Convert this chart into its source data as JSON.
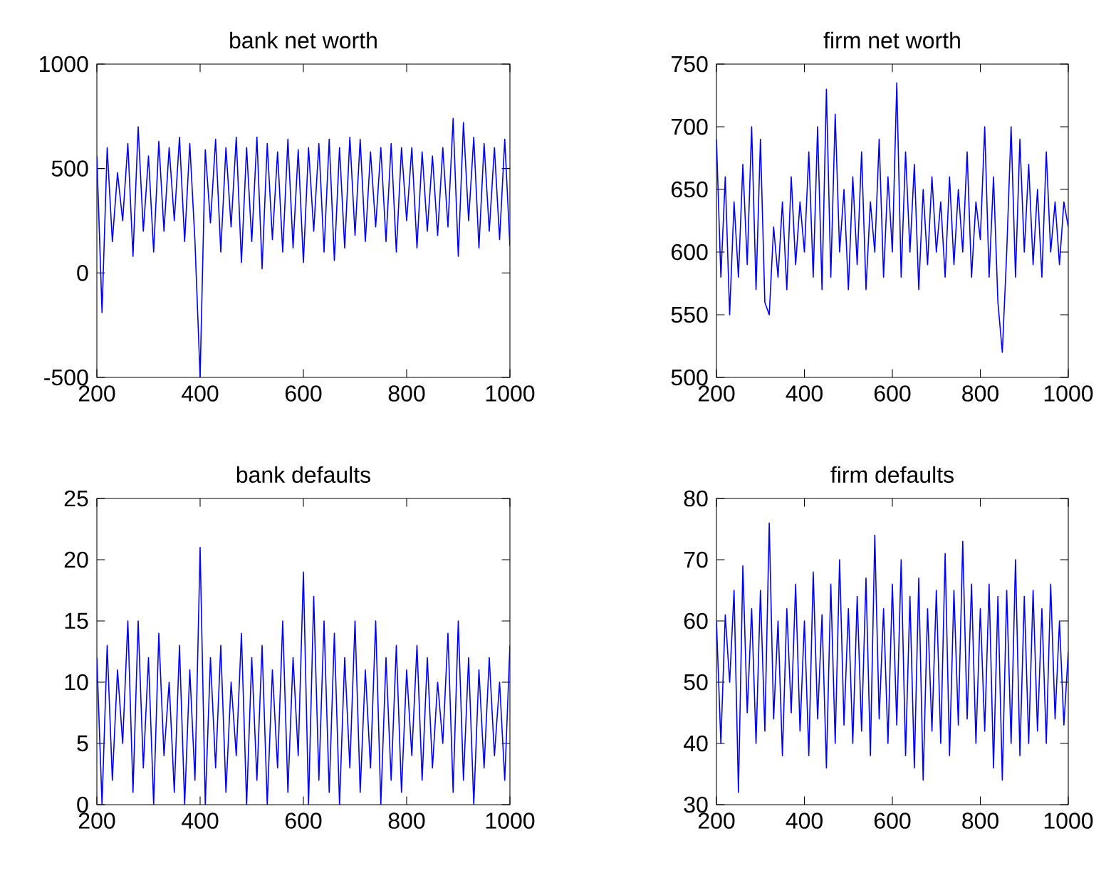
{
  "chart_data": [
    {
      "type": "line",
      "title": "bank net worth",
      "color": "#0000ff",
      "xlim": [
        200,
        1000
      ],
      "ylim": [
        -500,
        1000
      ],
      "xticks": [
        200,
        400,
        600,
        800,
        1000
      ],
      "yticks": [
        -500,
        0,
        500,
        1000
      ],
      "x": [
        200,
        210,
        220,
        230,
        240,
        250,
        260,
        270,
        280,
        290,
        300,
        310,
        320,
        330,
        340,
        350,
        360,
        370,
        380,
        390,
        400,
        410,
        420,
        430,
        440,
        450,
        460,
        470,
        480,
        490,
        500,
        510,
        520,
        530,
        540,
        550,
        560,
        570,
        580,
        590,
        600,
        610,
        620,
        630,
        640,
        650,
        660,
        670,
        680,
        690,
        700,
        710,
        720,
        730,
        740,
        750,
        760,
        770,
        780,
        790,
        800,
        810,
        820,
        830,
        840,
        850,
        860,
        870,
        880,
        890,
        900,
        910,
        920,
        930,
        940,
        950,
        960,
        970,
        980,
        990,
        1000
      ],
      "values": [
        560,
        -190,
        600,
        150,
        480,
        250,
        620,
        80,
        700,
        200,
        560,
        100,
        630,
        200,
        600,
        250,
        650,
        150,
        620,
        150,
        -500,
        590,
        240,
        640,
        100,
        600,
        220,
        650,
        50,
        600,
        150,
        650,
        20,
        620,
        160,
        580,
        100,
        640,
        120,
        590,
        50,
        600,
        200,
        620,
        100,
        640,
        60,
        600,
        120,
        650,
        180,
        640,
        150,
        580,
        220,
        600,
        150,
        620,
        100,
        600,
        250,
        600,
        120,
        580,
        200,
        560,
        180,
        600,
        220,
        740,
        80,
        720,
        250,
        650,
        120,
        620,
        200,
        600,
        160,
        640,
        130
      ]
    },
    {
      "type": "line",
      "title": "firm net worth",
      "color": "#0000ff",
      "xlim": [
        200,
        1000
      ],
      "ylim": [
        500,
        750
      ],
      "xticks": [
        200,
        400,
        600,
        800,
        1000
      ],
      "yticks": [
        500,
        550,
        600,
        650,
        700,
        750
      ],
      "x": [
        200,
        210,
        220,
        230,
        240,
        250,
        260,
        270,
        280,
        290,
        300,
        310,
        320,
        330,
        340,
        350,
        360,
        370,
        380,
        390,
        400,
        410,
        420,
        430,
        440,
        450,
        460,
        470,
        480,
        490,
        500,
        510,
        520,
        530,
        540,
        550,
        560,
        570,
        580,
        590,
        600,
        610,
        620,
        630,
        640,
        650,
        660,
        670,
        680,
        690,
        700,
        710,
        720,
        730,
        740,
        750,
        760,
        770,
        780,
        790,
        800,
        810,
        820,
        830,
        840,
        850,
        860,
        870,
        880,
        890,
        900,
        910,
        920,
        930,
        940,
        950,
        960,
        970,
        980,
        990,
        1000
      ],
      "values": [
        690,
        580,
        660,
        550,
        640,
        580,
        670,
        590,
        700,
        570,
        690,
        560,
        550,
        620,
        580,
        640,
        570,
        660,
        590,
        640,
        600,
        680,
        580,
        700,
        570,
        730,
        580,
        710,
        600,
        650,
        570,
        660,
        590,
        680,
        570,
        640,
        600,
        690,
        580,
        660,
        600,
        735,
        580,
        680,
        600,
        670,
        570,
        650,
        590,
        660,
        600,
        640,
        580,
        660,
        590,
        650,
        600,
        680,
        580,
        640,
        610,
        700,
        580,
        660,
        560,
        520,
        600,
        700,
        580,
        690,
        600,
        670,
        590,
        650,
        580,
        680,
        600,
        640,
        590,
        640,
        620
      ]
    },
    {
      "type": "line",
      "title": "bank defaults",
      "color": "#0000ff",
      "xlim": [
        200,
        1000
      ],
      "ylim": [
        0,
        25
      ],
      "xticks": [
        200,
        400,
        600,
        800,
        1000
      ],
      "yticks": [
        0,
        5,
        10,
        15,
        20,
        25
      ],
      "x": [
        200,
        210,
        220,
        230,
        240,
        250,
        260,
        270,
        280,
        290,
        300,
        310,
        320,
        330,
        340,
        350,
        360,
        370,
        380,
        390,
        400,
        410,
        420,
        430,
        440,
        450,
        460,
        470,
        480,
        490,
        500,
        510,
        520,
        530,
        540,
        550,
        560,
        570,
        580,
        590,
        600,
        610,
        620,
        630,
        640,
        650,
        660,
        670,
        680,
        690,
        700,
        710,
        720,
        730,
        740,
        750,
        760,
        770,
        780,
        790,
        800,
        810,
        820,
        830,
        840,
        850,
        860,
        870,
        880,
        890,
        900,
        910,
        920,
        930,
        940,
        950,
        960,
        970,
        980,
        990,
        1000
      ],
      "values": [
        12,
        0,
        13,
        2,
        11,
        5,
        15,
        1,
        15,
        3,
        12,
        0,
        14,
        4,
        10,
        1,
        13,
        0,
        11,
        2,
        21,
        0,
        12,
        3,
        13,
        1,
        10,
        4,
        14,
        0,
        12,
        2,
        13,
        0,
        11,
        3,
        15,
        1,
        12,
        4,
        19,
        0,
        17,
        2,
        15,
        1,
        14,
        0,
        12,
        3,
        15,
        1,
        11,
        3,
        15,
        0,
        12,
        2,
        13,
        1,
        11,
        4,
        13,
        2,
        12,
        3,
        10,
        5,
        14,
        1,
        15,
        2,
        12,
        0,
        11,
        3,
        12,
        4,
        10,
        2,
        13
      ]
    },
    {
      "type": "line",
      "title": "firm defaults",
      "color": "#0000ff",
      "xlim": [
        200,
        1000
      ],
      "ylim": [
        30,
        80
      ],
      "xticks": [
        200,
        400,
        600,
        800,
        1000
      ],
      "yticks": [
        30,
        40,
        50,
        60,
        70,
        80
      ],
      "x": [
        200,
        210,
        220,
        230,
        240,
        250,
        260,
        270,
        280,
        290,
        300,
        310,
        320,
        330,
        340,
        350,
        360,
        370,
        380,
        390,
        400,
        410,
        420,
        430,
        440,
        450,
        460,
        470,
        480,
        490,
        500,
        510,
        520,
        530,
        540,
        550,
        560,
        570,
        580,
        590,
        600,
        610,
        620,
        630,
        640,
        650,
        660,
        670,
        680,
        690,
        700,
        710,
        720,
        730,
        740,
        750,
        760,
        770,
        780,
        790,
        800,
        810,
        820,
        830,
        840,
        850,
        860,
        870,
        880,
        890,
        900,
        910,
        920,
        930,
        940,
        950,
        960,
        970,
        980,
        990,
        1000
      ],
      "values": [
        60,
        40,
        61,
        50,
        65,
        32,
        69,
        45,
        62,
        40,
        65,
        42,
        76,
        44,
        60,
        38,
        62,
        45,
        66,
        42,
        60,
        38,
        68,
        44,
        61,
        36,
        66,
        40,
        70,
        43,
        62,
        40,
        64,
        42,
        67,
        38,
        74,
        44,
        62,
        40,
        66,
        43,
        70,
        38,
        64,
        36,
        67,
        34,
        62,
        42,
        65,
        40,
        71,
        38,
        65,
        43,
        73,
        44,
        66,
        40,
        62,
        42,
        66,
        36,
        64,
        34,
        65,
        40,
        70,
        38,
        64,
        40,
        65,
        42,
        62,
        40,
        66,
        44,
        60,
        43,
        55
      ]
    }
  ]
}
